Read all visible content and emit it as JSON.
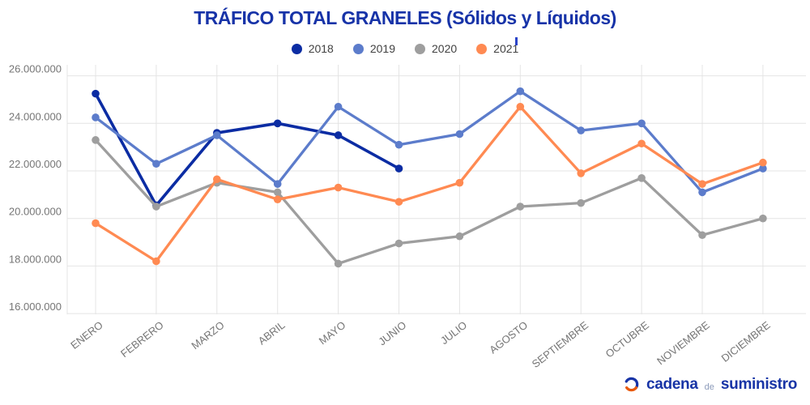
{
  "colors": {
    "title": "#1733A8",
    "grid": "#E4E4E4",
    "axis_text": "#757575",
    "legend_text": "#424242",
    "logo_blue": "#1834A6",
    "logo_de": "#8C9BBA",
    "logo_orange": "#E8590C",
    "stray_mark": "#2B44C8",
    "background": "#FFFFFF"
  },
  "chart_data": {
    "type": "line",
    "title": "TRÁFICO TOTAL GRANELES (Sólidos y Líquidos)",
    "categories": [
      "ENERO",
      "FEBRERO",
      "MARZO",
      "ABRIL",
      "MAYO",
      "JUNIO",
      "JULIO",
      "AGOSTO",
      "SEPTIEMBRE",
      "OCTUBRE",
      "NOVIEMBRE",
      "DICIEMBRE"
    ],
    "ylim": [
      16000000,
      26000000
    ],
    "y_ticks": [
      {
        "value": 16000000,
        "label": "16.000.000"
      },
      {
        "value": 18000000,
        "label": "18.000.000"
      },
      {
        "value": 20000000,
        "label": "20.000.000"
      },
      {
        "value": 22000000,
        "label": "22.000.000"
      },
      {
        "value": 24000000,
        "label": "24.000.000"
      },
      {
        "value": 26000000,
        "label": "26.000.000"
      }
    ],
    "grid": true,
    "legend_position": "top",
    "series": [
      {
        "name": "2018",
        "color": "#0B2CA3",
        "values": [
          25250000,
          20550000,
          23600000,
          24000000,
          23500000,
          22100000,
          null,
          null,
          null,
          null,
          null,
          null
        ]
      },
      {
        "name": "2019",
        "color": "#5C7CCB",
        "values": [
          24250000,
          22300000,
          23500000,
          21450000,
          24700000,
          23100000,
          23550000,
          25350000,
          23700000,
          24000000,
          21100000,
          22100000
        ]
      },
      {
        "name": "2020",
        "color": "#9E9E9E",
        "values": [
          23300000,
          20500000,
          21500000,
          21100000,
          18100000,
          18950000,
          19250000,
          20500000,
          20650000,
          21700000,
          19300000,
          20000000
        ]
      },
      {
        "name": "2021",
        "color": "#FF8A52",
        "values": [
          19800000,
          18200000,
          21650000,
          20800000,
          21300000,
          20700000,
          21500000,
          24700000,
          21900000,
          23150000,
          21450000,
          22350000
        ]
      }
    ]
  },
  "footer": {
    "brand": {
      "word1": "cadena",
      "word2": "de",
      "word3": "suministro"
    }
  }
}
